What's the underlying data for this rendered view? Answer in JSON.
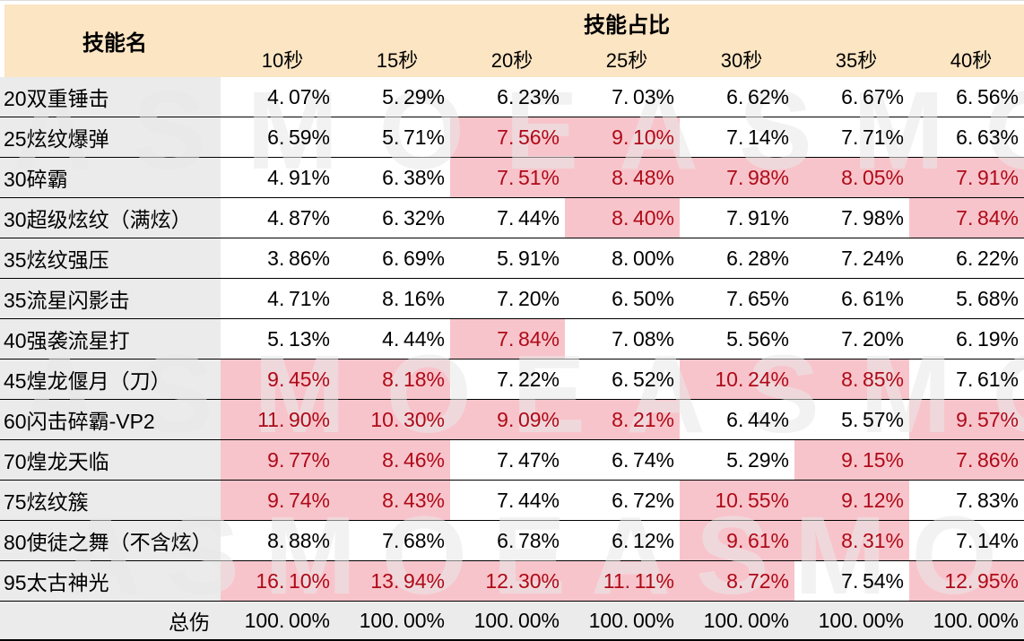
{
  "colors": {
    "headerFill": "#FBE5C3",
    "nameFill": "#EBEBEB",
    "totalFill": "#EBEBEB",
    "hlFill": "#F8C4CB",
    "hlText": "#AE0A18",
    "borderColor": "#000000",
    "wmColor": "#E9E9E9"
  },
  "watermark": {
    "text": "ASMOEASMO"
  },
  "table": {
    "skill_col_header": "技能名",
    "group_header": "技能占比"
  },
  "chart_data": {
    "type": "table",
    "title": "技能占比",
    "row_header": "技能名",
    "columns": [
      "10秒",
      "15秒",
      "20秒",
      "25秒",
      "30秒",
      "35秒",
      "40秒"
    ],
    "value_unit": "%",
    "series": [
      {
        "name": "20双重锤击",
        "values": [
          4.07,
          5.29,
          6.23,
          7.03,
          6.62,
          6.67,
          6.56
        ],
        "highlight": [
          0,
          0,
          0,
          0,
          0,
          0,
          0
        ]
      },
      {
        "name": "25炫纹爆弹",
        "values": [
          6.59,
          5.71,
          7.56,
          9.1,
          7.14,
          7.71,
          6.63
        ],
        "highlight": [
          0,
          0,
          1,
          1,
          0,
          0,
          0
        ]
      },
      {
        "name": "30碎霸",
        "values": [
          4.91,
          6.38,
          7.51,
          8.48,
          7.98,
          8.05,
          7.91
        ],
        "highlight": [
          0,
          0,
          1,
          1,
          1,
          1,
          1
        ]
      },
      {
        "name": "30超级炫纹（满炫）",
        "values": [
          4.87,
          6.32,
          7.44,
          8.4,
          7.91,
          7.98,
          7.84
        ],
        "highlight": [
          0,
          0,
          0,
          1,
          0,
          0,
          1
        ]
      },
      {
        "name": "35炫纹强压",
        "values": [
          3.86,
          6.69,
          5.91,
          8.0,
          6.28,
          7.24,
          6.22
        ],
        "highlight": [
          0,
          0,
          0,
          0,
          0,
          0,
          0
        ]
      },
      {
        "name": "35流星闪影击",
        "values": [
          4.71,
          8.16,
          7.2,
          6.5,
          7.65,
          6.61,
          5.68
        ],
        "highlight": [
          0,
          0,
          0,
          0,
          0,
          0,
          0
        ]
      },
      {
        "name": "40强袭流星打",
        "values": [
          5.13,
          4.44,
          7.84,
          7.08,
          5.56,
          7.2,
          6.19
        ],
        "highlight": [
          0,
          0,
          1,
          0,
          0,
          0,
          0
        ]
      },
      {
        "name": "45煌龙偃月（刀）",
        "values": [
          9.45,
          8.18,
          7.22,
          6.52,
          10.24,
          8.85,
          7.61
        ],
        "highlight": [
          1,
          1,
          0,
          0,
          1,
          1,
          0
        ]
      },
      {
        "name": "60闪击碎霸-VP2",
        "values": [
          11.9,
          10.3,
          9.09,
          8.21,
          6.44,
          5.57,
          9.57
        ],
        "highlight": [
          1,
          1,
          1,
          1,
          0,
          0,
          1
        ]
      },
      {
        "name": "70煌龙天临",
        "values": [
          9.77,
          8.46,
          7.47,
          6.74,
          5.29,
          9.15,
          7.86
        ],
        "highlight": [
          1,
          1,
          0,
          0,
          0,
          1,
          1
        ]
      },
      {
        "name": "75炫纹簇",
        "values": [
          9.74,
          8.43,
          7.44,
          6.72,
          10.55,
          9.12,
          7.83
        ],
        "highlight": [
          1,
          1,
          0,
          0,
          1,
          1,
          0
        ]
      },
      {
        "name": "80使徒之舞（不含炫）",
        "values": [
          8.88,
          7.68,
          6.78,
          6.12,
          9.61,
          8.31,
          7.14
        ],
        "highlight": [
          0,
          0,
          0,
          0,
          1,
          1,
          0
        ]
      },
      {
        "name": "95太古神光",
        "values": [
          16.1,
          13.94,
          12.3,
          11.11,
          8.72,
          7.54,
          12.95
        ],
        "highlight": [
          1,
          1,
          1,
          1,
          1,
          0,
          1
        ]
      }
    ],
    "total": {
      "label": "总伤",
      "values": [
        100.0,
        100.0,
        100.0,
        100.0,
        100.0,
        100.0,
        100.0
      ]
    }
  }
}
